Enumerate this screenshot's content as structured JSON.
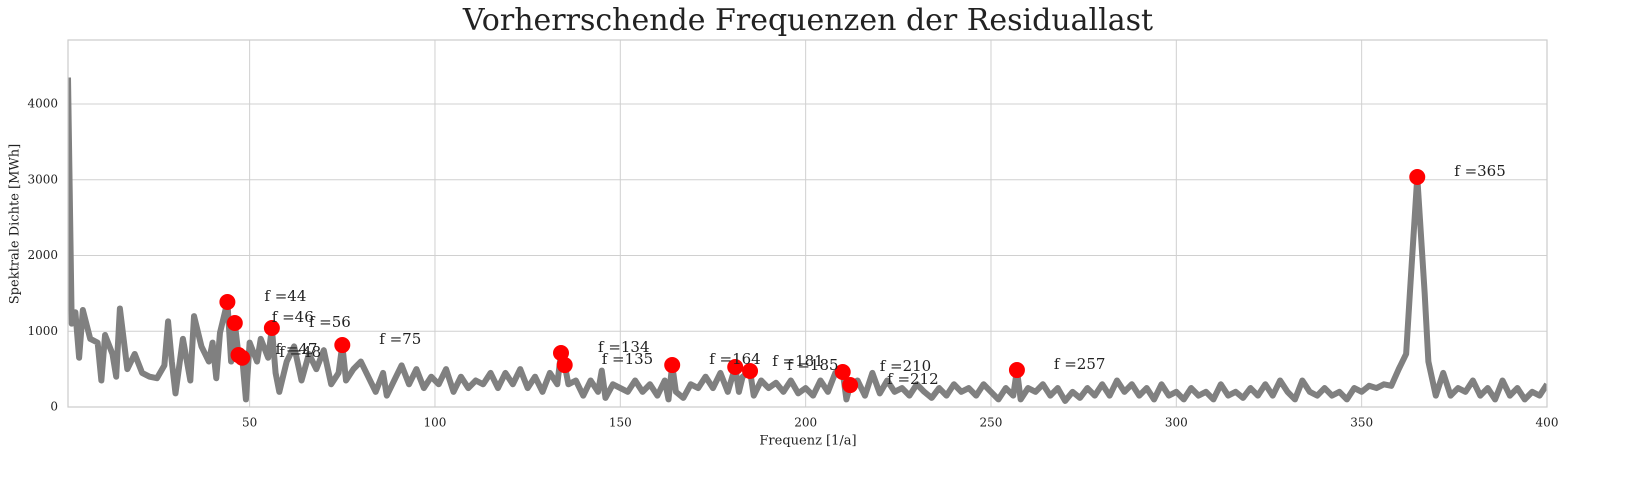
{
  "chart_data": {
    "type": "line",
    "title": "Vorherrschende Frequenzen der Residuallast",
    "xlabel": "Frequenz [1/a]",
    "ylabel": "Spektrale Dichte [MWh]",
    "xlim": [
      1,
      400
    ],
    "ylim": [
      0,
      4845
    ],
    "xticks": [
      50,
      100,
      150,
      200,
      250,
      300,
      350,
      400
    ],
    "yticks": [
      0,
      1000,
      2000,
      3000,
      4000
    ],
    "grid": true,
    "series": [
      {
        "color": "#808080",
        "x": [
          1,
          2,
          3,
          4,
          5,
          7,
          9,
          10,
          11,
          13,
          14,
          15,
          17,
          19,
          21,
          23,
          25,
          27,
          28,
          29,
          30,
          32,
          34,
          35,
          37,
          39,
          40,
          41,
          42,
          44,
          45,
          46,
          47,
          48,
          49,
          50,
          52,
          53,
          55,
          56,
          57,
          58,
          60,
          62,
          64,
          66,
          68,
          70,
          72,
          74,
          75,
          76,
          78,
          80,
          82,
          84,
          86,
          87,
          89,
          91,
          93,
          95,
          97,
          99,
          101,
          103,
          105,
          107,
          109,
          111,
          113,
          115,
          117,
          119,
          121,
          123,
          125,
          127,
          129,
          131,
          133,
          134,
          135,
          136,
          138,
          140,
          142,
          144,
          145,
          146,
          148,
          150,
          152,
          154,
          156,
          158,
          160,
          162,
          163,
          164,
          165,
          167,
          169,
          171,
          173,
          175,
          177,
          179,
          181,
          182,
          183,
          185,
          186,
          188,
          190,
          192,
          194,
          196,
          198,
          200,
          202,
          204,
          206,
          208,
          210,
          211,
          212,
          214,
          216,
          218,
          220,
          222,
          224,
          226,
          228,
          230,
          232,
          234,
          236,
          238,
          240,
          242,
          244,
          246,
          248,
          250,
          252,
          254,
          256,
          257,
          258,
          260,
          262,
          264,
          266,
          268,
          270,
          272,
          274,
          276,
          278,
          280,
          282,
          284,
          286,
          288,
          290,
          292,
          294,
          296,
          298,
          300,
          302,
          304,
          306,
          308,
          310,
          312,
          314,
          316,
          318,
          320,
          322,
          324,
          326,
          328,
          330,
          332,
          334,
          336,
          338,
          340,
          342,
          344,
          346,
          348,
          350,
          352,
          354,
          356,
          358,
          360,
          362,
          363,
          365,
          367,
          368,
          370,
          372,
          374,
          376,
          378,
          380,
          382,
          384,
          386,
          388,
          390,
          392,
          394,
          396,
          398,
          400
        ],
        "values": [
          4350,
          1100,
          1250,
          650,
          1280,
          900,
          850,
          350,
          950,
          700,
          400,
          1300,
          500,
          700,
          450,
          400,
          380,
          550,
          1130,
          600,
          180,
          900,
          350,
          1200,
          800,
          600,
          850,
          380,
          980,
          1386,
          600,
          1109,
          686,
          650,
          100,
          850,
          600,
          900,
          650,
          1043,
          450,
          200,
          600,
          800,
          350,
          700,
          500,
          750,
          300,
          450,
          818,
          350,
          500,
          600,
          400,
          200,
          450,
          150,
          350,
          550,
          300,
          500,
          250,
          400,
          300,
          500,
          200,
          400,
          250,
          350,
          300,
          450,
          250,
          450,
          300,
          500,
          250,
          400,
          200,
          450,
          300,
          713,
          554,
          300,
          350,
          150,
          350,
          200,
          480,
          120,
          300,
          250,
          200,
          350,
          200,
          300,
          150,
          350,
          100,
          554,
          200,
          120,
          300,
          250,
          400,
          250,
          450,
          200,
          528,
          200,
          400,
          475,
          150,
          350,
          250,
          320,
          200,
          350,
          180,
          250,
          150,
          350,
          200,
          450,
          462,
          100,
          290,
          350,
          150,
          450,
          180,
          350,
          200,
          250,
          150,
          300,
          200,
          120,
          250,
          150,
          300,
          200,
          250,
          150,
          300,
          200,
          100,
          250,
          150,
          488,
          100,
          250,
          200,
          300,
          150,
          250,
          80,
          200,
          120,
          250,
          150,
          300,
          150,
          350,
          200,
          300,
          150,
          250,
          100,
          300,
          150,
          200,
          100,
          250,
          150,
          200,
          100,
          300,
          150,
          200,
          120,
          250,
          150,
          300,
          150,
          350,
          200,
          100,
          350,
          200,
          150,
          250,
          150,
          200,
          100,
          250,
          200,
          280,
          250,
          300,
          280,
          500,
          700,
          1500,
          3036,
          1500,
          600,
          150,
          450,
          150,
          250,
          200,
          350,
          150,
          250,
          100,
          350,
          150,
          250,
          100,
          200,
          150,
          300
        ]
      }
    ],
    "peaks": {
      "color": "#ff0000",
      "x": [
        44,
        46,
        47,
        48,
        56,
        75,
        134,
        135,
        164,
        181,
        185,
        210,
        212,
        257,
        365
      ],
      "values": [
        1386,
        1109,
        686,
        650,
        1043,
        818,
        713,
        554,
        554,
        528,
        475,
        462,
        290,
        488,
        3036
      ],
      "labels": [
        "f =44",
        "f =46",
        "f =47",
        "f =48",
        "f =56",
        "f =75",
        "f =134",
        "f =135",
        "f =164",
        "f =181",
        "f =185",
        "f =210",
        "f =212",
        "f =257",
        "f =365"
      ]
    }
  }
}
